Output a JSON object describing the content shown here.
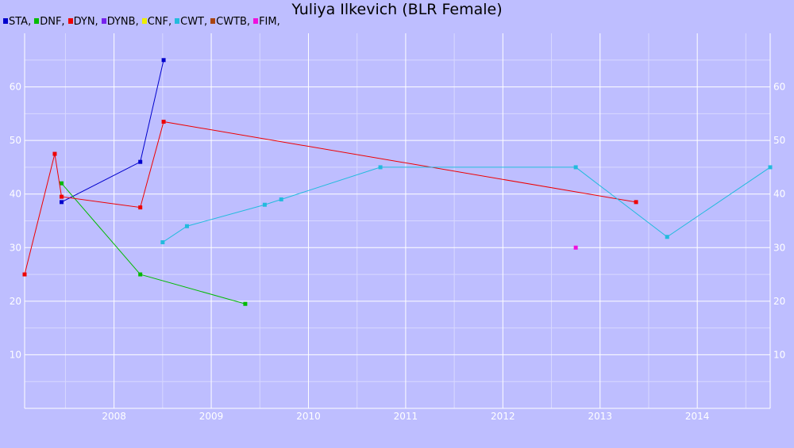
{
  "chart_data": {
    "type": "line",
    "title": "Yuliya Ilkevich (BLR Female)",
    "xlabel": "",
    "ylabel": "",
    "xlim": [
      2007.08,
      2014.75
    ],
    "ylim": [
      0,
      70
    ],
    "x_ticks": [
      2008,
      2009,
      2010,
      2011,
      2012,
      2013,
      2014
    ],
    "y_ticks": [
      10,
      20,
      30,
      40,
      50,
      60
    ],
    "grid": true,
    "legend_position": "top-left",
    "series": [
      {
        "name": "STA",
        "color": "#0000cc",
        "points": [
          [
            2007.46,
            38.5
          ],
          [
            2008.27,
            46
          ],
          [
            2008.51,
            65
          ]
        ]
      },
      {
        "name": "DNF",
        "color": "#00bb00",
        "points": [
          [
            2007.46,
            42
          ],
          [
            2008.27,
            25
          ],
          [
            2009.35,
            19.5
          ]
        ]
      },
      {
        "name": "DYN",
        "color": "#ee0000",
        "points": [
          [
            2007.08,
            25
          ],
          [
            2007.39,
            47.5
          ],
          [
            2007.46,
            39.5
          ],
          [
            2008.27,
            37.5
          ],
          [
            2008.51,
            53.5
          ],
          [
            2013.37,
            38.5
          ]
        ]
      },
      {
        "name": "DYNB",
        "color": "#7722ee",
        "points": []
      },
      {
        "name": "CNF",
        "color": "#eeee00",
        "points": []
      },
      {
        "name": "CWT",
        "color": "#22bbdd",
        "points": [
          [
            2008.5,
            31
          ],
          [
            2008.75,
            34
          ],
          [
            2009.55,
            38
          ],
          [
            2009.72,
            39
          ],
          [
            2010.74,
            45
          ],
          [
            2012.75,
            45
          ],
          [
            2013.69,
            32
          ],
          [
            2014.75,
            45
          ]
        ]
      },
      {
        "name": "CWTB",
        "color": "#aa4411",
        "points": []
      },
      {
        "name": "FIM",
        "color": "#ee11dd",
        "points": [
          [
            2012.75,
            30
          ]
        ]
      }
    ]
  }
}
